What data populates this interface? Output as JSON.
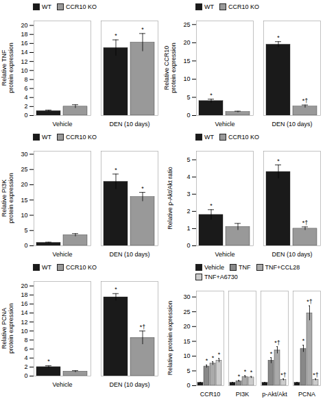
{
  "chart_data": [
    {
      "type": "bar",
      "ylabel": "Relative TNF\nprotein expression",
      "categories": [
        "Vehicle",
        "DEN (10 days)"
      ],
      "series": [
        {
          "name": "WT",
          "color": "#1a1a1a",
          "values": [
            1.0,
            15.0
          ],
          "errors": [
            0.2,
            1.8
          ]
        },
        {
          "name": "CCR10 KO",
          "color": "#999999",
          "values": [
            2.0,
            16.2
          ],
          "errors": [
            0.4,
            2.0
          ]
        }
      ],
      "ylim": [
        0,
        21
      ],
      "yticks": [
        0,
        2,
        4,
        6,
        8,
        10,
        12,
        14,
        16,
        18,
        20
      ],
      "legend": "upper left",
      "grid": false,
      "annotations": [
        {
          "text": "*",
          "category": "DEN (10 days)",
          "series": "WT"
        },
        {
          "text": "*",
          "category": "DEN (10 days)",
          "series": "CCR10 KO"
        }
      ]
    },
    {
      "type": "bar",
      "ylabel": "Relative CCR10\nprotein expression",
      "categories": [
        "Vehicle",
        "DEN (10 days)"
      ],
      "series": [
        {
          "name": "WT",
          "color": "#1a1a1a",
          "values": [
            4.0,
            19.5
          ],
          "errors": [
            0.5,
            0.8
          ]
        },
        {
          "name": "CCR10 KO",
          "color": "#999999",
          "values": [
            1.0,
            2.5
          ],
          "errors": [
            0.2,
            0.4
          ]
        }
      ],
      "ylim": [
        0,
        26
      ],
      "yticks": [
        0,
        5,
        10,
        15,
        20,
        25
      ],
      "legend": "upper left",
      "grid": false,
      "annotations": [
        {
          "text": "*",
          "category": "Vehicle",
          "series": "WT"
        },
        {
          "text": "*",
          "category": "DEN (10 days)",
          "series": "WT"
        },
        {
          "text": "*†",
          "category": "DEN (10 days)",
          "series": "CCR10 KO"
        }
      ]
    },
    {
      "type": "bar",
      "ylabel": "Relative PI3K\nprotein expression",
      "categories": [
        "Vehicle",
        "DEN (10 days)"
      ],
      "series": [
        {
          "name": "WT",
          "color": "#1a1a1a",
          "values": [
            1.0,
            21.0
          ],
          "errors": [
            0.2,
            2.5
          ]
        },
        {
          "name": "CCR10 KO",
          "color": "#999999",
          "values": [
            3.5,
            16.0
          ],
          "errors": [
            0.5,
            1.5
          ]
        }
      ],
      "ylim": [
        0,
        31
      ],
      "yticks": [
        0,
        5,
        10,
        15,
        20,
        25,
        30
      ],
      "legend": "upper left",
      "grid": false,
      "annotations": [
        {
          "text": "*",
          "category": "DEN (10 days)",
          "series": "WT"
        },
        {
          "text": "*",
          "category": "DEN (10 days)",
          "series": "CCR10 KO"
        }
      ]
    },
    {
      "type": "bar",
      "ylabel": "Relative p-Akt/Akt ratio",
      "categories": [
        "Vehicle",
        "DEN (10 days)"
      ],
      "series": [
        {
          "name": "WT",
          "color": "#1a1a1a",
          "values": [
            1.8,
            4.3
          ],
          "errors": [
            0.3,
            0.4
          ]
        },
        {
          "name": "CCR10 KO",
          "color": "#999999",
          "values": [
            1.1,
            1.0
          ],
          "errors": [
            0.2,
            0.1
          ]
        }
      ],
      "ylim": [
        0,
        5.5
      ],
      "yticks": [
        0,
        1,
        2,
        3,
        4,
        5
      ],
      "legend": "upper left",
      "grid": false,
      "annotations": [
        {
          "text": "*",
          "category": "Vehicle",
          "series": "WT"
        },
        {
          "text": "*",
          "category": "DEN (10 days)",
          "series": "WT"
        },
        {
          "text": "*†",
          "category": "DEN (10 days)",
          "series": "CCR10 KO"
        }
      ]
    },
    {
      "type": "bar",
      "ylabel": "Relative PCNA\nprotein expression",
      "categories": [
        "Vehicle",
        "DEN (10 days)"
      ],
      "series": [
        {
          "name": "WT",
          "color": "#1a1a1a",
          "values": [
            2.0,
            17.5
          ],
          "errors": [
            0.3,
            0.8
          ]
        },
        {
          "name": "CCR10 KO",
          "color": "#999999",
          "values": [
            1.0,
            8.5
          ],
          "errors": [
            0.2,
            1.5
          ]
        }
      ],
      "ylim": [
        0,
        21
      ],
      "yticks": [
        0,
        2,
        4,
        6,
        8,
        10,
        12,
        14,
        16,
        18,
        20
      ],
      "legend": "upper left",
      "grid": false,
      "annotations": [
        {
          "text": "*",
          "category": "Vehicle",
          "series": "WT"
        },
        {
          "text": "*",
          "category": "DEN (10 days)",
          "series": "WT"
        },
        {
          "text": "*†",
          "category": "DEN (10 days)",
          "series": "CCR10 KO"
        }
      ]
    },
    {
      "type": "bar",
      "ylabel": "Relative protein expression",
      "categories": [
        "CCR10",
        "PI3K",
        "p-Akt/Akt",
        "PCNA"
      ],
      "series": [
        {
          "name": "Vehicle",
          "color": "#1a1a1a",
          "values": [
            1.0,
            1.0,
            1.0,
            1.0
          ],
          "errors": [
            0.1,
            0.1,
            0.1,
            0.1
          ]
        },
        {
          "name": "TNF",
          "color": "#888888",
          "values": [
            6.5,
            1.5,
            8.5,
            12.5
          ],
          "errors": [
            0.5,
            0.3,
            1.0,
            1.2
          ]
        },
        {
          "name": "TNF+CCL28",
          "color": "#aaaaaa",
          "values": [
            7.5,
            3.0,
            12.0,
            24.5
          ],
          "errors": [
            0.6,
            0.4,
            1.2,
            2.5
          ]
        },
        {
          "name": "TNF+A6730",
          "color": "#cccccc",
          "values": [
            8.5,
            2.8,
            2.0,
            2.0
          ],
          "errors": [
            0.7,
            0.3,
            0.3,
            0.3
          ]
        }
      ],
      "ylim": [
        0,
        32
      ],
      "yticks": [
        0,
        5,
        10,
        15,
        20,
        25,
        30
      ],
      "legend": "upper left",
      "grid": false,
      "annotations": [
        {
          "text": "*",
          "category": "CCR10",
          "series": "TNF"
        },
        {
          "text": "*",
          "category": "CCR10",
          "series": "TNF+CCL28"
        },
        {
          "text": "*",
          "category": "CCR10",
          "series": "TNF+A6730"
        },
        {
          "text": "*",
          "category": "PI3K",
          "series": "TNF"
        },
        {
          "text": "*",
          "category": "PI3K",
          "series": "TNF+CCL28"
        },
        {
          "text": "*",
          "category": "PI3K",
          "series": "TNF+A6730"
        },
        {
          "text": "*",
          "category": "p-Akt/Akt",
          "series": "TNF"
        },
        {
          "text": "*†",
          "category": "p-Akt/Akt",
          "series": "TNF+CCL28"
        },
        {
          "text": "*†",
          "category": "p-Akt/Akt",
          "series": "TNF+A6730"
        },
        {
          "text": "*",
          "category": "PCNA",
          "series": "TNF"
        },
        {
          "text": "*†",
          "category": "PCNA",
          "series": "TNF+CCL28"
        },
        {
          "text": "*†",
          "category": "PCNA",
          "series": "TNF+A6730"
        }
      ]
    }
  ]
}
